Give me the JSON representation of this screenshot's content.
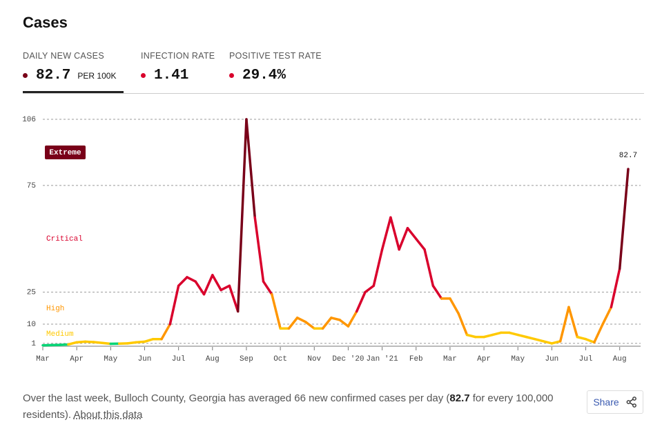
{
  "header": {
    "title": "Cases",
    "metrics": [
      {
        "label": "DAILY NEW CASES",
        "value": "82.7",
        "unit": "PER 100K",
        "color": "#790019"
      },
      {
        "label": "INFECTION RATE",
        "value": "1.41",
        "color": "#d9002c"
      },
      {
        "label": "POSITIVE TEST RATE",
        "value": "29.4%",
        "color": "#d9002c"
      }
    ]
  },
  "chart_data": {
    "type": "line",
    "categories": [
      "Mar",
      null,
      null,
      null,
      "Apr",
      null,
      null,
      null,
      "May",
      null,
      null,
      null,
      "Jun",
      null,
      null,
      null,
      "Jul",
      null,
      null,
      null,
      "Aug",
      null,
      null,
      null,
      "Sep",
      null,
      null,
      null,
      "Oct",
      null,
      null,
      null,
      "Nov",
      null,
      null,
      null,
      "Dec '20",
      null,
      null,
      null,
      "Jan '21",
      null,
      null,
      null,
      "Feb",
      null,
      null,
      null,
      "Mar",
      null,
      null,
      null,
      "Apr",
      null,
      null,
      null,
      "May",
      null,
      null,
      null,
      "Jun",
      null,
      null,
      null,
      "Jul",
      null,
      null,
      null,
      "Aug",
      null
    ],
    "values": [
      0.1,
      0.2,
      0.3,
      0.5,
      1.5,
      1.8,
      1.6,
      1.2,
      0.8,
      0.9,
      1.0,
      1.5,
      1.8,
      3,
      3,
      10,
      28,
      32,
      30,
      24,
      33,
      26,
      28,
      16,
      106,
      60,
      30,
      24,
      8,
      8,
      13,
      11,
      8,
      8,
      13,
      12,
      9,
      16,
      25,
      28,
      45,
      60,
      45,
      55,
      50,
      45,
      28,
      22,
      22,
      15,
      5,
      4,
      4,
      5,
      6,
      6,
      5,
      4,
      3,
      2,
      1,
      2,
      18,
      4,
      3,
      1.5,
      10,
      18,
      36,
      82.7
    ],
    "ylim": [
      0,
      106
    ],
    "yticks": [
      1,
      10,
      25,
      75,
      106
    ],
    "grid": true,
    "levels": [
      {
        "label": "Medium",
        "color": "#ffc900"
      },
      {
        "label": "High",
        "color": "#ff9600"
      },
      {
        "label": "Critical",
        "color": "#d9002c"
      },
      {
        "label": "Extreme",
        "color": "#790019"
      }
    ],
    "below_color": "#00d474"
  },
  "footer": {
    "text_before": "Over the last week, Bulloch County, Georgia has averaged 66 new confirmed cases per day (",
    "bold": "82.7",
    "text_after": " for every 100,000 residents). ",
    "link": "About this data",
    "share": "Share"
  }
}
